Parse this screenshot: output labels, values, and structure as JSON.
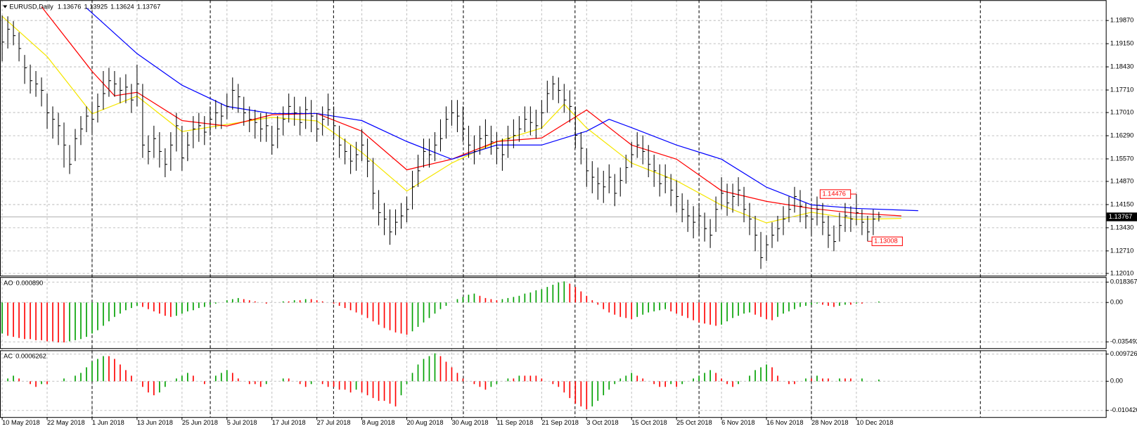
{
  "chart_data": [
    {
      "type": "ohlc",
      "title": "EURUSD,Daily",
      "last_open": 1.13676,
      "bar_color": "#000000",
      "grid": true,
      "categories": [
        "10 May 2018",
        null,
        null,
        null,
        null,
        null,
        null,
        null,
        "22 May 2018",
        null,
        null,
        null,
        null,
        null,
        null,
        null,
        "1 Jun 2018",
        null,
        null,
        null,
        null,
        null,
        null,
        null,
        "13 Jun 2018",
        null,
        null,
        null,
        null,
        null,
        null,
        null,
        "25 Jun 2018",
        null,
        null,
        null,
        null,
        null,
        null,
        null,
        "5 Jul 2018",
        null,
        null,
        null,
        null,
        null,
        null,
        null,
        "17 Jul 2018",
        null,
        null,
        null,
        null,
        null,
        null,
        null,
        "27 Jul 2018",
        null,
        null,
        null,
        null,
        null,
        null,
        null,
        "8 Aug 2018",
        null,
        null,
        null,
        null,
        null,
        null,
        null,
        "20 Aug 2018",
        null,
        null,
        null,
        null,
        null,
        null,
        null,
        "30 Aug 2018",
        null,
        null,
        null,
        null,
        null,
        null,
        null,
        "11 Sep 2018",
        null,
        null,
        null,
        null,
        null,
        null,
        null,
        "21 Sep 2018",
        null,
        null,
        null,
        null,
        null,
        null,
        null,
        "3 Oct 2018",
        null,
        null,
        null,
        null,
        null,
        null,
        null,
        "15 Oct 2018",
        null,
        null,
        null,
        null,
        null,
        null,
        null,
        "25 Oct 2018",
        null,
        null,
        null,
        null,
        null,
        null,
        null,
        "6 Nov 2018",
        null,
        null,
        null,
        null,
        null,
        null,
        null,
        "16 Nov 2018",
        null,
        null,
        null,
        null,
        null,
        null,
        null,
        "28 Nov 2018",
        null,
        null,
        null,
        null,
        null,
        null,
        null,
        "10 Dec 2018",
        null,
        null,
        null,
        null
      ],
      "high": [
        1.2003,
        1.2,
        1.1985,
        1.195,
        1.188,
        1.185,
        1.183,
        1.181,
        1.176,
        1.172,
        1.17,
        1.167,
        1.16,
        1.165,
        1.169,
        1.172,
        1.173,
        1.176,
        1.183,
        1.184,
        1.183,
        1.181,
        1.182,
        1.179,
        1.185,
        1.179,
        1.163,
        1.166,
        1.164,
        1.159,
        1.164,
        1.17,
        1.166,
        1.164,
        1.169,
        1.17,
        1.169,
        1.172,
        1.174,
        1.173,
        1.176,
        1.181,
        1.179,
        1.175,
        1.172,
        1.171,
        1.17,
        1.17,
        1.166,
        1.169,
        1.172,
        1.176,
        1.175,
        1.172,
        1.175,
        1.174,
        1.17,
        1.172,
        1.176,
        1.172,
        1.166,
        1.162,
        1.16,
        1.161,
        1.165,
        1.162,
        1.156,
        1.146,
        1.142,
        1.14,
        1.14,
        1.142,
        1.144,
        1.152,
        1.157,
        1.162,
        1.162,
        1.164,
        1.168,
        1.172,
        1.174,
        1.174,
        1.172,
        1.166,
        1.163,
        1.166,
        1.168,
        1.166,
        1.164,
        1.162,
        1.166,
        1.168,
        1.169,
        1.172,
        1.172,
        1.171,
        1.174,
        1.18,
        1.1815,
        1.181,
        1.179,
        1.177,
        1.172,
        1.164,
        1.159,
        1.155,
        1.153,
        1.152,
        1.154,
        1.151,
        1.153,
        1.157,
        1.161,
        1.164,
        1.163,
        1.16,
        1.157,
        1.154,
        1.154,
        1.151,
        1.149,
        1.145,
        1.143,
        1.141,
        1.142,
        1.139,
        1.137,
        1.144,
        1.15,
        1.148,
        1.148,
        1.15,
        1.147,
        1.142,
        1.138,
        1.133,
        1.132,
        1.136,
        1.138,
        1.141,
        1.144,
        1.147,
        1.146,
        1.142,
        1.141,
        1.144,
        1.142,
        1.138,
        1.135,
        1.139,
        1.142,
        1.141,
        1.14476,
        1.14,
        1.138,
        1.14,
        1.13925
      ],
      "low": [
        1.186,
        1.19,
        1.191,
        1.186,
        1.179,
        1.176,
        1.175,
        1.172,
        1.165,
        1.162,
        1.16,
        1.153,
        1.151,
        1.155,
        1.16,
        1.164,
        1.164,
        1.167,
        1.171,
        1.175,
        1.175,
        1.173,
        1.173,
        1.17,
        1.172,
        1.156,
        1.154,
        1.156,
        1.153,
        1.15,
        1.152,
        1.158,
        1.152,
        1.155,
        1.159,
        1.161,
        1.16,
        1.163,
        1.165,
        1.165,
        1.168,
        1.171,
        1.17,
        1.166,
        1.164,
        1.162,
        1.161,
        1.161,
        1.157,
        1.159,
        1.163,
        1.167,
        1.166,
        1.163,
        1.165,
        1.164,
        1.161,
        1.163,
        1.166,
        1.162,
        1.156,
        1.154,
        1.151,
        1.152,
        1.155,
        1.15,
        1.14,
        1.135,
        1.132,
        1.129,
        1.132,
        1.134,
        1.136,
        1.14,
        1.147,
        1.153,
        1.153,
        1.155,
        1.158,
        1.162,
        1.166,
        1.164,
        1.161,
        1.156,
        1.154,
        1.157,
        1.159,
        1.157,
        1.154,
        1.152,
        1.156,
        1.159,
        1.161,
        1.164,
        1.163,
        1.162,
        1.165,
        1.17,
        1.174,
        1.173,
        1.17,
        1.167,
        1.159,
        1.154,
        1.147,
        1.145,
        1.143,
        1.142,
        1.145,
        1.141,
        1.144,
        1.148,
        1.153,
        1.156,
        1.154,
        1.15,
        1.147,
        1.144,
        1.145,
        1.141,
        1.139,
        1.136,
        1.133,
        1.131,
        1.132,
        1.13,
        1.128,
        1.133,
        1.14,
        1.138,
        1.139,
        1.141,
        1.136,
        1.132,
        1.127,
        1.1215,
        1.124,
        1.128,
        1.13,
        1.132,
        1.136,
        1.139,
        1.136,
        1.134,
        1.132,
        1.135,
        1.132,
        1.128,
        1.127,
        1.13,
        1.133,
        1.133,
        1.135,
        1.132,
        1.13008,
        1.132,
        1.13624
      ],
      "close": [
        1.192,
        1.196,
        1.194,
        1.19,
        1.184,
        1.18,
        1.179,
        1.177,
        1.17,
        1.168,
        1.166,
        1.16,
        1.154,
        1.162,
        1.165,
        1.169,
        1.168,
        1.172,
        1.176,
        1.18,
        1.179,
        1.177,
        1.178,
        1.174,
        1.179,
        1.16,
        1.158,
        1.162,
        1.158,
        1.154,
        1.16,
        1.166,
        1.156,
        1.16,
        1.165,
        1.166,
        1.164,
        1.168,
        1.17,
        1.169,
        1.172,
        1.177,
        1.175,
        1.17,
        1.168,
        1.167,
        1.165,
        1.166,
        1.16,
        1.165,
        1.168,
        1.172,
        1.17,
        1.167,
        1.171,
        1.169,
        1.165,
        1.168,
        1.171,
        1.166,
        1.16,
        1.158,
        1.155,
        1.157,
        1.16,
        1.155,
        1.145,
        1.139,
        1.137,
        1.133,
        1.136,
        1.138,
        1.14,
        1.147,
        1.152,
        1.158,
        1.157,
        1.16,
        1.162,
        1.168,
        1.17,
        1.169,
        1.165,
        1.16,
        1.158,
        1.162,
        1.163,
        1.161,
        1.159,
        1.157,
        1.162,
        1.163,
        1.165,
        1.168,
        1.167,
        1.166,
        1.17,
        1.176,
        1.179,
        1.177,
        1.174,
        1.172,
        1.163,
        1.159,
        1.152,
        1.15,
        1.148,
        1.147,
        1.15,
        1.145,
        1.149,
        1.153,
        1.157,
        1.16,
        1.158,
        1.154,
        1.152,
        1.148,
        1.15,
        1.146,
        1.144,
        1.14,
        1.138,
        1.136,
        1.138,
        1.134,
        1.132,
        1.14,
        1.145,
        1.142,
        1.144,
        1.146,
        1.14,
        1.137,
        1.132,
        1.125,
        1.129,
        1.132,
        1.134,
        1.137,
        1.14,
        1.144,
        1.141,
        1.138,
        1.137,
        1.14,
        1.136,
        1.132,
        1.13,
        1.135,
        1.138,
        1.137,
        1.139,
        1.136,
        1.133,
        1.137,
        1.13767
      ],
      "moving_averages": [
        {
          "color": "#f5e600",
          "x": [
            0,
            8,
            16,
            24,
            32,
            40,
            48,
            56,
            64,
            72,
            80,
            88,
            96,
            100,
            104,
            112,
            120,
            128,
            136,
            144,
            152,
            160
          ],
          "values": [
            1.2,
            1.1875,
            1.1697,
            1.1752,
            1.1642,
            1.1664,
            1.1686,
            1.1675,
            1.1577,
            1.1457,
            1.1544,
            1.161,
            1.1653,
            1.1727,
            1.1653,
            1.1544,
            1.1489,
            1.1413,
            1.1358,
            1.1391,
            1.1369,
            1.1372
          ]
        },
        {
          "color": "#ff0000",
          "x": [
            7,
            16,
            20,
            24,
            32,
            40,
            48,
            56,
            64,
            72,
            80,
            88,
            96,
            104,
            112,
            120,
            128,
            136,
            144,
            152,
            160
          ],
          "values": [
            1.203,
            1.1829,
            1.1753,
            1.1764,
            1.1676,
            1.1659,
            1.1694,
            1.1698,
            1.1643,
            1.1523,
            1.1556,
            1.1611,
            1.1622,
            1.1709,
            1.16,
            1.1556,
            1.1458,
            1.1425,
            1.1403,
            1.1388,
            1.138
          ]
        },
        {
          "color": "#0000ff",
          "x": [
            15,
            24,
            32,
            40,
            48,
            56,
            64,
            72,
            80,
            88,
            96,
            104,
            108,
            112,
            120,
            128,
            136,
            144,
            152,
            163
          ],
          "values": [
            1.2026,
            1.1884,
            1.1786,
            1.172,
            1.1698,
            1.1698,
            1.1676,
            1.1611,
            1.1556,
            1.16,
            1.16,
            1.1643,
            1.168,
            1.1654,
            1.16,
            1.1556,
            1.1469,
            1.1414,
            1.1403,
            1.1396
          ]
        }
      ],
      "ylim": [
        1.1194,
        1.2039
      ],
      "yticks": [
        {
          "value": 1.1987,
          "label": "1.19870"
        },
        {
          "value": 1.1915,
          "label": "1.19150"
        },
        {
          "value": 1.1843,
          "label": "1.18430"
        },
        {
          "value": 1.1771,
          "label": "1.17710"
        },
        {
          "value": 1.1701,
          "label": "1.17010"
        },
        {
          "value": 1.1629,
          "label": "1.16290"
        },
        {
          "value": 1.1557,
          "label": "1.15570"
        },
        {
          "value": 1.1487,
          "label": "1.14870"
        },
        {
          "value": 1.1415,
          "label": "1.14150"
        },
        {
          "value": 1.1343,
          "label": "1.13430"
        },
        {
          "value": 1.1271,
          "label": "1.12710"
        },
        {
          "value": 1.1201,
          "label": "1.12010"
        }
      ]
    },
    {
      "type": "histogram",
      "title": "AO",
      "last_value_label": "0.000890",
      "up_color": "#00a000",
      "down_color": "#ff0000",
      "grid": true,
      "values": [
        -0.028,
        -0.03,
        -0.031,
        -0.032,
        -0.033,
        -0.033,
        -0.034,
        -0.034,
        -0.035,
        -0.035,
        -0.036,
        -0.036,
        -0.035,
        -0.034,
        -0.033,
        -0.031,
        -0.028,
        -0.025,
        -0.021,
        -0.017,
        -0.013,
        -0.01,
        -0.007,
        -0.005,
        -0.003,
        -0.004,
        -0.006,
        -0.008,
        -0.01,
        -0.012,
        -0.013,
        -0.012,
        -0.01,
        -0.008,
        -0.007,
        -0.005,
        -0.004,
        -0.002,
        -0.001,
        0.0,
        0.002,
        0.003,
        0.004,
        0.003,
        0.002,
        0.001,
        0.0,
        -0.001,
        0.0,
        0.0,
        0.001,
        0.001,
        0.002,
        0.002,
        0.003,
        0.003,
        0.002,
        0.001,
        0.0,
        -0.001,
        -0.003,
        -0.005,
        -0.007,
        -0.009,
        -0.011,
        -0.014,
        -0.017,
        -0.02,
        -0.023,
        -0.025,
        -0.027,
        -0.028,
        -0.029,
        -0.026,
        -0.022,
        -0.018,
        -0.014,
        -0.01,
        -0.006,
        -0.003,
        0.0,
        0.003,
        0.005,
        0.007,
        0.008,
        0.006,
        0.004,
        0.003,
        0.002,
        0.003,
        0.004,
        0.005,
        0.006,
        0.008,
        0.009,
        0.011,
        0.012,
        0.014,
        0.016,
        0.018,
        0.019,
        0.017,
        0.014,
        0.01,
        0.006,
        0.002,
        -0.002,
        -0.006,
        -0.009,
        -0.011,
        -0.013,
        -0.014,
        -0.015,
        -0.013,
        -0.011,
        -0.009,
        -0.008,
        -0.007,
        -0.006,
        -0.008,
        -0.01,
        -0.012,
        -0.014,
        -0.016,
        -0.018,
        -0.019,
        -0.02,
        -0.021,
        -0.02,
        -0.017,
        -0.014,
        -0.012,
        -0.01,
        -0.009,
        -0.011,
        -0.013,
        -0.015,
        -0.016,
        -0.013,
        -0.01,
        -0.008,
        -0.006,
        -0.004,
        -0.003,
        -0.002,
        -0.001,
        -0.002,
        -0.003,
        -0.004,
        -0.003,
        -0.002,
        -0.002,
        -0.001,
        -0.001,
        0.0,
        0.0,
        0.00089
      ],
      "ylim": [
        -0.0412,
        0.0222
      ],
      "yticks": [
        0.018367,
        {
          "value": 0,
          "label": "0.00"
        },
        -0.035492
      ]
    },
    {
      "type": "histogram",
      "title": "AC",
      "up_color": "#00a000",
      "down_color": "#ff0000",
      "grid": true,
      "values": [
        0.0,
        0.001,
        0.002,
        0.001,
        0.0,
        -0.001,
        -0.002,
        -0.001,
        -0.001,
        0.0,
        0.0,
        0.001,
        0.0,
        0.002,
        0.003,
        0.005,
        0.007,
        0.008,
        0.009,
        0.009,
        0.008,
        0.006,
        0.004,
        0.002,
        0.0,
        -0.002,
        -0.004,
        -0.005,
        -0.004,
        -0.002,
        0.0,
        0.001,
        0.002,
        0.003,
        0.002,
        0.0,
        -0.001,
        0.0,
        0.002,
        0.003,
        0.004,
        0.003,
        0.001,
        0.0,
        -0.001,
        -0.001,
        -0.002,
        -0.001,
        0.0,
        0.0,
        0.001,
        0.001,
        0.0,
        -0.001,
        -0.002,
        -0.001,
        0.0,
        -0.001,
        -0.002,
        -0.002,
        -0.003,
        -0.003,
        -0.004,
        -0.003,
        -0.004,
        -0.005,
        -0.006,
        -0.007,
        -0.007,
        -0.008,
        -0.009,
        -0.005,
        -0.001,
        0.003,
        0.006,
        0.008,
        0.009,
        0.01,
        0.009,
        0.007,
        0.005,
        0.003,
        0.001,
        0.0,
        -0.001,
        -0.002,
        -0.003,
        -0.002,
        -0.001,
        0.0,
        0.001,
        0.001,
        0.002,
        0.002,
        0.002,
        0.002,
        0.001,
        0.0,
        -0.001,
        -0.002,
        -0.004,
        -0.006,
        -0.008,
        -0.009,
        -0.01,
        -0.009,
        -0.007,
        -0.005,
        -0.003,
        -0.001,
        0.001,
        0.002,
        0.003,
        0.002,
        0.001,
        0.0,
        -0.001,
        -0.002,
        -0.002,
        -0.001,
        -0.002,
        -0.001,
        0.0,
        0.001,
        0.002,
        0.003,
        0.004,
        0.003,
        0.001,
        -0.001,
        -0.002,
        -0.001,
        0.0,
        0.002,
        0.004,
        0.005,
        0.006,
        0.005,
        0.002,
        0.0,
        -0.001,
        -0.001,
        0.0,
        0.001,
        0.001,
        0.002,
        0.001,
        0.001,
        0.0,
        0.001,
        0.001,
        0.001,
        0.0,
        0.001,
        0.0,
        0.0,
        0.0006262
      ],
      "ylim": [
        -0.0128,
        0.0108
      ],
      "yticks": [
        0.009726,
        {
          "value": 0,
          "label": "0.00"
        },
        -0.010426
      ]
    }
  ]
}
